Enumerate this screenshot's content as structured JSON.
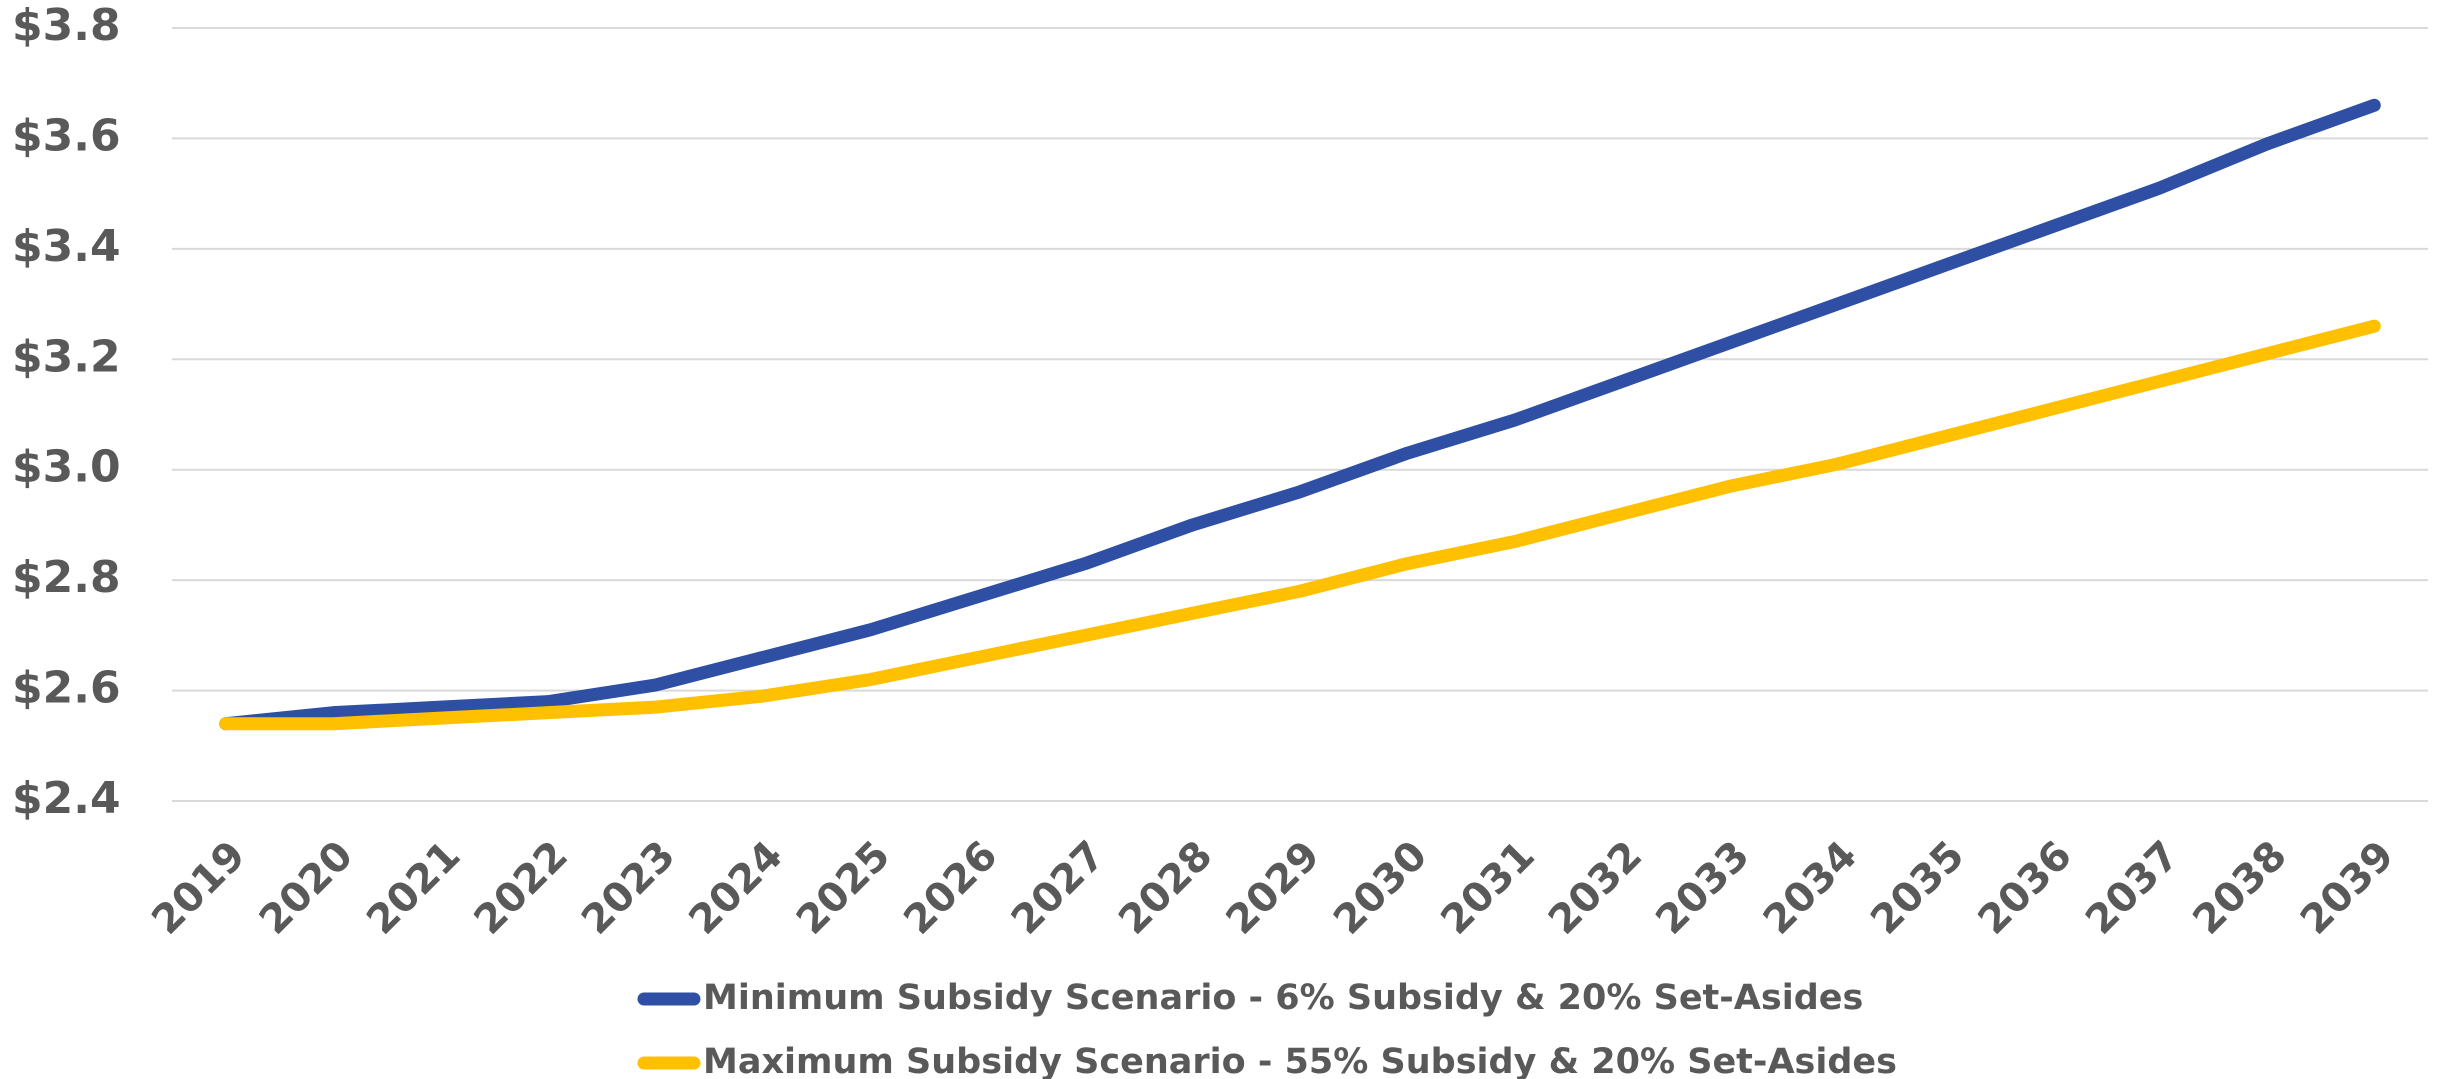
{
  "chart_data": {
    "type": "line",
    "categories": [
      "2019",
      "2020",
      "2021",
      "2022",
      "2023",
      "2024",
      "2025",
      "2026",
      "2027",
      "2028",
      "2029",
      "2030",
      "2031",
      "2032",
      "2033",
      "2034",
      "2035",
      "2036",
      "2037",
      "2038",
      "2039"
    ],
    "series": [
      {
        "name": "Minimum Subsidy Scenario - 6% Subsidy & 20% Set-Asides",
        "color": "#2e4fa3",
        "values": [
          2.54,
          2.56,
          2.57,
          2.58,
          2.61,
          2.66,
          2.71,
          2.77,
          2.83,
          2.9,
          2.96,
          3.03,
          3.09,
          3.16,
          3.23,
          3.3,
          3.37,
          3.44,
          3.51,
          3.59,
          3.66
        ]
      },
      {
        "name": "Maximum Subsidy Scenario - 55% Subsidy & 20% Set-Asides",
        "color": "#ffc000",
        "values": [
          2.54,
          2.54,
          2.55,
          2.56,
          2.57,
          2.59,
          2.62,
          2.66,
          2.7,
          2.74,
          2.78,
          2.83,
          2.87,
          2.92,
          2.97,
          3.01,
          3.06,
          3.11,
          3.16,
          3.21,
          3.26
        ]
      }
    ],
    "ylim": [
      2.4,
      3.8
    ],
    "yticks": [
      {
        "value": 2.4,
        "label": "$2.4"
      },
      {
        "value": 2.6,
        "label": "$2.6"
      },
      {
        "value": 2.8,
        "label": "$2.8"
      },
      {
        "value": 3.0,
        "label": "$3.0"
      },
      {
        "value": 3.2,
        "label": "$3.2"
      },
      {
        "value": 3.4,
        "label": "$3.4"
      },
      {
        "value": 3.6,
        "label": "$3.6"
      },
      {
        "value": 3.8,
        "label": "$3.8"
      }
    ],
    "grid": true,
    "legend": "bottom"
  }
}
